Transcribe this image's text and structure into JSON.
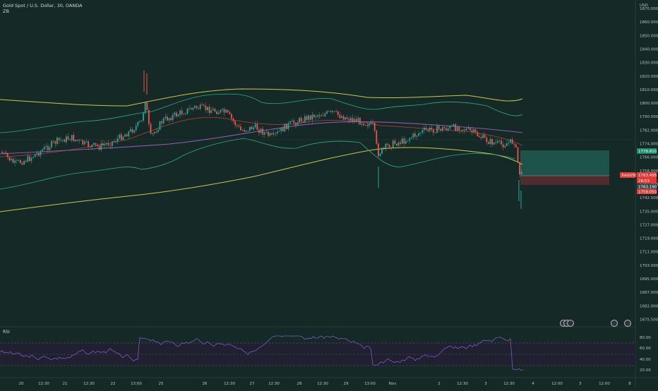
{
  "header": {
    "title": "Gold Spot / U.S. Dollar, 30, OANDA",
    "indicator": "ZB",
    "currency": "USD"
  },
  "price_axis": {
    "ticks": [
      "1870.000",
      "1860.000",
      "1850.000",
      "1840.000",
      "1830.000",
      "1820.000",
      "1810.000",
      "1800.000",
      "1790.000",
      "1782.000",
      "1774.000",
      "1766.000",
      "1758.000",
      "1750.000",
      "1742.500",
      "1735.000",
      "1727.000",
      "1719.000",
      "1711.000",
      "1703.000",
      "1695.000",
      "1687.000",
      "1682.000",
      "1675.500"
    ],
    "tags": {
      "target": "1778.810",
      "symbol": "XAUUSD",
      "last": "1763.495",
      "countdown": "28:53",
      "entry": "1763.190",
      "stop": "1758.050"
    }
  },
  "rsi": {
    "label": "RSI",
    "ticks": [
      "80.00",
      "60.00",
      "40.00",
      "20.00"
    ]
  },
  "time_axis": {
    "ticks": [
      "20",
      "12:30",
      "21",
      "12:30",
      "22",
      "13:00",
      "25",
      "26",
      "12:30",
      "27",
      "12:30",
      "28",
      "12:30",
      "29",
      "13:00",
      "Nov",
      "2",
      "12:30",
      "3",
      "12:30",
      "4",
      "12:00",
      "5",
      "12:00",
      "8"
    ]
  },
  "colors": {
    "background": "#152a26",
    "up_candle": "#26a69a",
    "down_candle": "#ef5350",
    "bb_yellow": "#c8c84a",
    "bb_teal": "#2fa98c",
    "ma_red": "#b5403c",
    "ma_purple": "#9d5cc0",
    "rsi_line": "#7e57c2",
    "target_zone": "#1f5a52",
    "stop_zone": "#5a2e2e"
  }
}
